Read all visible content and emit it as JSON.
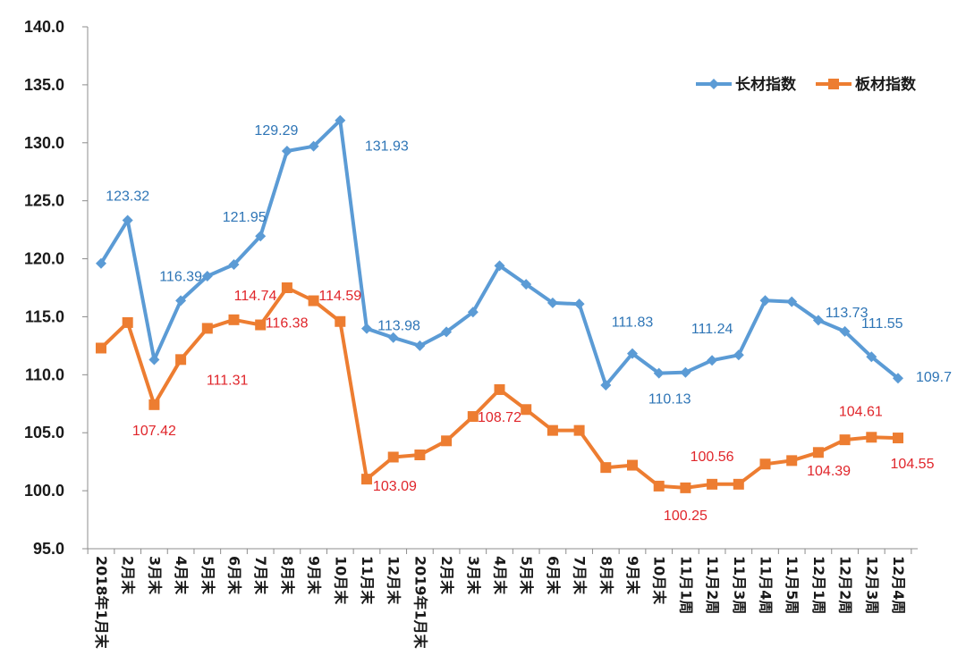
{
  "chart_data": {
    "type": "line",
    "title": "",
    "xlabel": "",
    "ylabel": "",
    "ylim": [
      95,
      140
    ],
    "yticks": [
      "140.0",
      "135.0",
      "130.0",
      "125.0",
      "120.0",
      "115.0",
      "110.0",
      "105.0",
      "100.0",
      "95.0"
    ],
    "categories": [
      "2018年1月末",
      "2月末",
      "3月末",
      "4月末",
      "5月末",
      "6月末",
      "7月末",
      "8月末",
      "9月末",
      "10月末",
      "11月末",
      "12月末",
      "2019年1月末",
      "2月末",
      "3月末",
      "4月末",
      "5月末",
      "6月末",
      "7月末",
      "8月末",
      "9月末",
      "10月末",
      "11月1周",
      "11月2周",
      "11月3周",
      "11月4周",
      "11月5周",
      "12月1周",
      "12月2周",
      "12月3周",
      "12月4周"
    ],
    "legend_position": "top-right",
    "series": [
      {
        "name": "长材指数",
        "color": "#5b9bd5",
        "label_color": "#2e75b6",
        "marker": "diamond",
        "values": [
          119.6,
          123.32,
          111.3,
          116.39,
          118.5,
          119.5,
          121.95,
          129.29,
          129.7,
          131.93,
          113.98,
          113.2,
          112.5,
          113.7,
          115.4,
          119.4,
          117.8,
          116.2,
          116.1,
          109.1,
          111.83,
          110.13,
          110.2,
          111.24,
          111.7,
          116.4,
          116.3,
          114.7,
          113.73,
          111.55,
          109.7
        ],
        "labels": [
          {
            "index": 1,
            "text": "123.32"
          },
          {
            "index": 3,
            "text": "116.39"
          },
          {
            "index": 6,
            "text": "121.95"
          },
          {
            "index": 7,
            "text": "129.29"
          },
          {
            "index": 9,
            "text": "131.93"
          },
          {
            "index": 10,
            "text": "113.98"
          },
          {
            "index": 20,
            "text": "111.83"
          },
          {
            "index": 21,
            "text": "110.13"
          },
          {
            "index": 23,
            "text": "111.24"
          },
          {
            "index": 28,
            "text": "113.73"
          },
          {
            "index": 29,
            "text": "111.55"
          },
          {
            "index": 30,
            "text": "109.7"
          }
        ]
      },
      {
        "name": "板材指数",
        "color": "#ed7d31",
        "label_color": "#e0262b",
        "marker": "square",
        "values": [
          112.3,
          114.5,
          107.42,
          111.31,
          114.0,
          114.74,
          114.3,
          117.5,
          116.38,
          114.59,
          101.0,
          102.9,
          103.09,
          104.3,
          106.4,
          108.72,
          107.0,
          105.2,
          105.2,
          102.0,
          102.2,
          100.4,
          100.25,
          100.56,
          100.56,
          102.3,
          102.6,
          103.3,
          104.39,
          104.61,
          104.55
        ],
        "labels": [
          {
            "index": 2,
            "text": "107.42"
          },
          {
            "index": 3,
            "text": "111.31"
          },
          {
            "index": 5,
            "text": "114.74"
          },
          {
            "index": 8,
            "text": "116.38"
          },
          {
            "index": 9,
            "text": "114.59"
          },
          {
            "index": 12,
            "text": "103.09"
          },
          {
            "index": 15,
            "text": "108.72"
          },
          {
            "index": 22,
            "text": "100.25"
          },
          {
            "index": 23,
            "text": "100.56"
          },
          {
            "index": 28,
            "text": "104.39"
          },
          {
            "index": 29,
            "text": "104.61"
          },
          {
            "index": 30,
            "text": "104.55"
          }
        ]
      }
    ]
  }
}
